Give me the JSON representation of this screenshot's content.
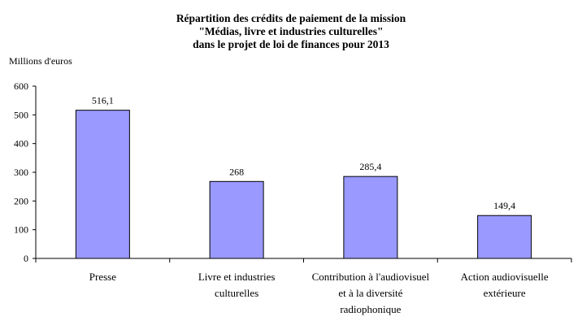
{
  "chart_data": {
    "type": "bar",
    "title": [
      "Répartition des crédits de paiement de la mission",
      "\"Médias, livre et industries culturelles\"",
      "dans le projet de loi de finances pour 2013"
    ],
    "ylabel": "Millions d'euros",
    "xlabel": "",
    "categories": [
      [
        "Presse"
      ],
      [
        "Livre et industries",
        "culturelles"
      ],
      [
        "Contribution à l'audiovisuel",
        "et à la diversité",
        "radiophonique"
      ],
      [
        "Action audiovisuelle",
        "extérieure"
      ]
    ],
    "values": [
      516.1,
      268,
      285.4,
      149.4
    ],
    "value_labels": [
      "516,1",
      "268",
      "285,4",
      "149,4"
    ],
    "ylim": [
      0,
      600
    ],
    "yticks": [
      0,
      100,
      200,
      300,
      400,
      500,
      600
    ],
    "grid": false,
    "legend": "none",
    "bar_color": "#9999ff",
    "bar_edge_color": "#000000"
  }
}
